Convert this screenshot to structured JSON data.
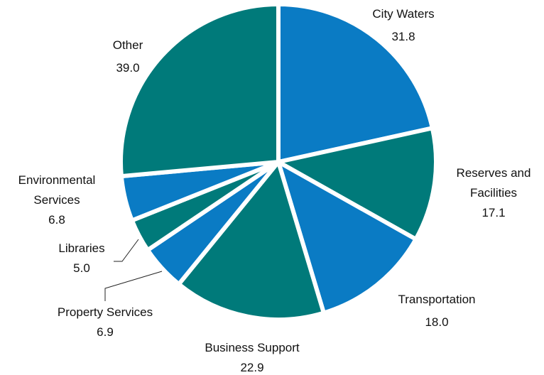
{
  "chart_data": {
    "type": "pie",
    "categories": [
      "City Waters",
      "Reserves and Facilities",
      "Transportation",
      "Business Support",
      "Property Services",
      "Libraries",
      "Environmental Services",
      "Other"
    ],
    "values": [
      31.8,
      17.1,
      18.0,
      22.9,
      6.9,
      5.0,
      6.8,
      39.0
    ],
    "value_labels": [
      "31.8",
      "17.1",
      "18.0",
      "22.9",
      "6.9",
      "5.0",
      "6.8",
      "39.0"
    ],
    "colors": [
      "#0a7bc4",
      "#007a7a",
      "#0a7bc4",
      "#007a7a",
      "#0a7bc4",
      "#007a7a",
      "#0a7bc4",
      "#007a7a"
    ]
  }
}
